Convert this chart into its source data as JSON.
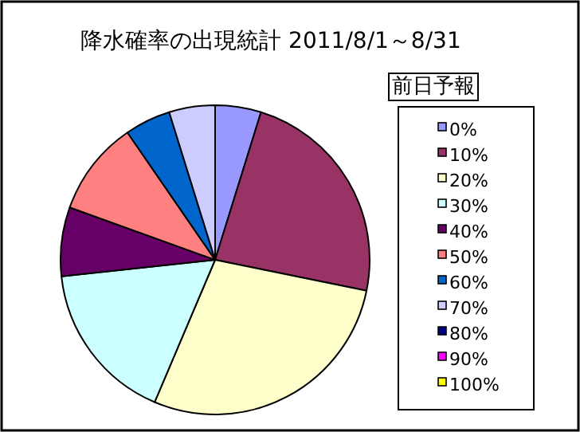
{
  "chart_data": {
    "type": "pie",
    "title": "降水確率の出現統計 2011/8/1～8/31",
    "legend_title": "前日予報",
    "legend": "right",
    "categories": [
      "0%",
      "10%",
      "20%",
      "30%",
      "40%",
      "50%",
      "60%",
      "70%",
      "80%",
      "90%",
      "100%"
    ],
    "values": [
      4.8,
      23.4,
      28.2,
      16.9,
      7.2,
      9.9,
      4.8,
      4.8,
      0,
      0,
      0
    ],
    "colors": [
      "#9999ff",
      "#993366",
      "#ffffcc",
      "#ccffff",
      "#660066",
      "#ff8080",
      "#0066cc",
      "#ccccff",
      "#000080",
      "#ff00ff",
      "#ffff00"
    ]
  }
}
